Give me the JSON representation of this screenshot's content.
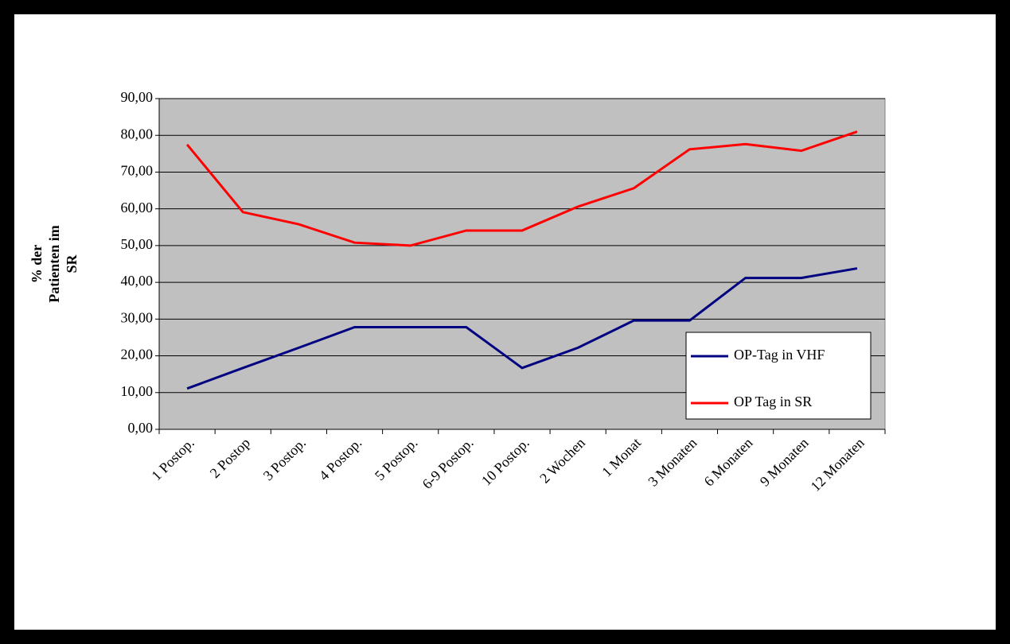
{
  "chart_data": {
    "type": "line",
    "y_label": [
      "% der",
      "Patienten im",
      "SR"
    ],
    "categories": [
      "1 Postop.",
      "2 Postop",
      "3 Postop.",
      "4 Postop.",
      "5 Postop.",
      "6-9 Postop.",
      "10 Postop.",
      "2 Wochen",
      "1 Monat",
      "3 Monaten",
      "6 Monaten",
      "9 Monaten",
      "12 Monaten"
    ],
    "series": [
      {
        "name": "OP-Tag in VHF",
        "color": "#000080",
        "values": [
          11.1,
          16.7,
          22.2,
          27.8,
          27.8,
          27.8,
          16.7,
          22.2,
          29.6,
          29.6,
          41.2,
          41.2,
          43.8
        ]
      },
      {
        "name": "OP Tag in SR",
        "color": "#ff0000",
        "values": [
          77.5,
          59.1,
          55.8,
          50.8,
          50.0,
          54.1,
          54.1,
          60.6,
          65.6,
          76.2,
          77.6,
          75.8,
          81.0
        ]
      }
    ],
    "ylim": [
      0,
      90
    ],
    "yticks": [
      {
        "value": 0,
        "label": "0,00"
      },
      {
        "value": 10,
        "label": "10,00"
      },
      {
        "value": 20,
        "label": "20,00"
      },
      {
        "value": 30,
        "label": "30,00"
      },
      {
        "value": 40,
        "label": "40,00"
      },
      {
        "value": 50,
        "label": "50,00"
      },
      {
        "value": 60,
        "label": "60,00"
      },
      {
        "value": 70,
        "label": "70,00"
      },
      {
        "value": 80,
        "label": "80,00"
      },
      {
        "value": 90,
        "label": "90,00"
      }
    ],
    "grid": true,
    "legend": "right"
  }
}
